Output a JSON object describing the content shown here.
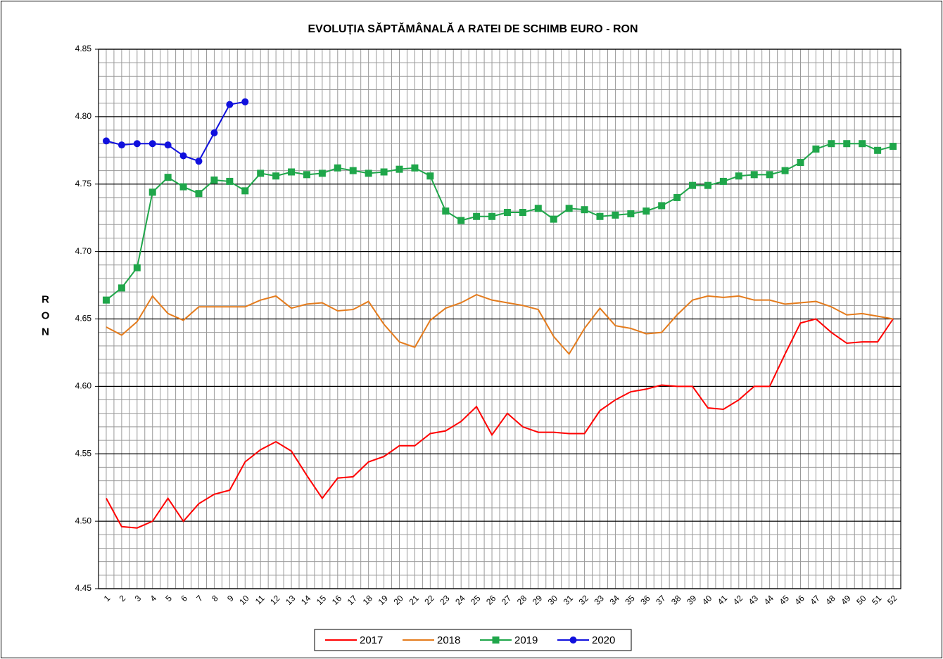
{
  "chart_data": {
    "type": "line",
    "title": "EVOLUȚIA SĂPTĂMÂNALĂ A RATEI DE SCHIMB EURO - RON",
    "y_label": "RON",
    "categories": [
      "1",
      "2",
      "3",
      "4",
      "5",
      "6",
      "7",
      "8",
      "9",
      "10",
      "11",
      "12",
      "13",
      "14",
      "15",
      "16",
      "17",
      "18",
      "19",
      "20",
      "21",
      "22",
      "23",
      "24",
      "25",
      "26",
      "27",
      "28",
      "29",
      "30",
      "31",
      "32",
      "33",
      "34",
      "35",
      "36",
      "37",
      "38",
      "39",
      "40",
      "41",
      "42",
      "43",
      "44",
      "45",
      "46",
      "47",
      "48",
      "49",
      "50",
      "51",
      "52"
    ],
    "ylim": [
      4.45,
      4.85
    ],
    "yticks": [
      4.45,
      {
        "value": 4.5,
        "label": "4.50"
      },
      4.55,
      {
        "value": 4.6,
        "label": "4.60"
      },
      4.65,
      {
        "value": 4.7,
        "label": "4.70"
      },
      4.75,
      {
        "value": 4.8,
        "label": "4.80"
      },
      4.85
    ],
    "grid": true,
    "legend": "bottom",
    "series": [
      {
        "name": "2017",
        "color": "#ff0000",
        "marker": null,
        "values": [
          4.517,
          4.496,
          4.495,
          4.5,
          4.517,
          4.5,
          4.513,
          4.52,
          4.523,
          4.544,
          4.553,
          4.559,
          4.552,
          4.534,
          4.517,
          4.532,
          4.533,
          4.544,
          4.548,
          4.556,
          4.556,
          4.565,
          4.567,
          4.574,
          4.585,
          4.564,
          4.58,
          4.57,
          4.566,
          4.566,
          4.565,
          4.565,
          4.582,
          4.59,
          4.596,
          4.598,
          4.601,
          4.6,
          4.6,
          4.584,
          4.583,
          4.59,
          4.6,
          4.6,
          4.624,
          4.647,
          4.65,
          4.64,
          4.632,
          4.633,
          4.633,
          4.65
        ]
      },
      {
        "name": "2018",
        "color": "#e47b1c",
        "marker": null,
        "values": [
          4.644,
          4.638,
          4.648,
          4.667,
          4.654,
          4.649,
          4.659,
          4.659,
          4.659,
          4.659,
          4.664,
          4.667,
          4.658,
          4.661,
          4.662,
          4.656,
          4.657,
          4.663,
          4.646,
          4.633,
          4.629,
          4.649,
          4.658,
          4.662,
          4.668,
          4.664,
          4.662,
          4.66,
          4.657,
          4.637,
          4.624,
          4.643,
          4.658,
          4.645,
          4.643,
          4.639,
          4.64,
          4.653,
          4.664,
          4.667,
          4.666,
          4.667,
          4.664,
          4.664,
          4.661,
          4.662,
          4.663,
          4.659,
          4.653,
          4.654,
          4.652,
          4.65
        ]
      },
      {
        "name": "2019",
        "color": "#1fa64a",
        "marker": "square",
        "values": [
          4.664,
          4.673,
          4.688,
          4.744,
          4.755,
          4.748,
          4.743,
          4.753,
          4.752,
          4.745,
          4.758,
          4.756,
          4.759,
          4.757,
          4.758,
          4.762,
          4.76,
          4.758,
          4.759,
          4.761,
          4.762,
          4.756,
          4.73,
          4.723,
          4.726,
          4.726,
          4.729,
          4.729,
          4.732,
          4.724,
          4.732,
          4.731,
          4.726,
          4.727,
          4.728,
          4.73,
          4.734,
          4.74,
          4.749,
          4.749,
          4.752,
          4.756,
          4.757,
          4.757,
          4.76,
          4.766,
          4.776,
          4.78,
          4.78,
          4.78,
          4.775,
          4.778
        ]
      },
      {
        "name": "2020",
        "color": "#1010dd",
        "marker": "circle",
        "values": [
          4.782,
          4.779,
          4.78,
          4.78,
          4.779,
          4.771,
          4.767,
          4.788,
          4.809,
          4.811,
          null,
          null,
          null,
          null,
          null,
          null,
          null,
          null,
          null,
          null,
          null,
          null,
          null,
          null,
          null,
          null,
          null,
          null,
          null,
          null,
          null,
          null,
          null,
          null,
          null,
          null,
          null,
          null,
          null,
          null,
          null,
          null,
          null,
          null,
          null,
          null,
          null,
          null,
          null,
          null,
          null,
          null
        ]
      }
    ]
  }
}
